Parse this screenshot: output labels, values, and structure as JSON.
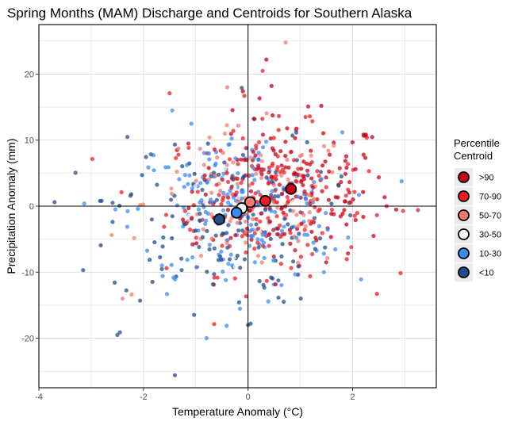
{
  "chart_data": {
    "type": "scatter",
    "title": "Spring Months (MAM) Discharge and Centroids for Southern Alaska",
    "xlabel": "Temperature Anomaly (°C)",
    "ylabel": "Precipitation Anomaly (mm)",
    "xlim": [
      -4,
      3.6
    ],
    "ylim": [
      -27.5,
      27.5
    ],
    "x_ticks": [
      -4,
      -2,
      0,
      2
    ],
    "y_ticks": [
      -20,
      -10,
      0,
      10,
      20
    ],
    "x_tick_labels": [
      "-4",
      "-2",
      "0",
      "2"
    ],
    "y_tick_labels": [
      "-20",
      "-10",
      "0",
      "10",
      "20"
    ],
    "grid": true,
    "reference_lines": {
      "x": 0,
      "y": 0
    },
    "legend": {
      "title_lines": [
        "Percentile",
        "Centroid"
      ],
      "position": "right",
      "entries": [
        {
          "label": ">90",
          "color": "#C8001A",
          "edge": "#000000"
        },
        {
          "label": "70-90",
          "color": "#EE1C25",
          "edge": "#000000"
        },
        {
          "label": "50-70",
          "color": "#F47A6E",
          "edge": "#000000"
        },
        {
          "label": "30-50",
          "color": "#F7FBFF",
          "edge": "#000000"
        },
        {
          "label": "10-30",
          "color": "#3A8CF5",
          "edge": "#000000"
        },
        {
          "label": "<10",
          "color": "#1F4E8C",
          "edge": "#000000"
        }
      ]
    },
    "centroids": [
      {
        "label": ">90",
        "x": 0.82,
        "y": 2.6
      },
      {
        "label": "70-90",
        "x": 0.33,
        "y": 0.8
      },
      {
        "label": "50-70",
        "x": 0.04,
        "y": 0.6
      },
      {
        "label": "30-50",
        "x": -0.12,
        "y": -0.3
      },
      {
        "label": "10-30",
        "x": -0.22,
        "y": -1.0
      },
      {
        "label": "<10",
        "x": -0.55,
        "y": -2.0
      }
    ],
    "series": [
      {
        "label": ">90",
        "x_mean": 0.82,
        "y_mean": 2.6,
        "x_sd": 0.95,
        "y_sd": 5.5,
        "count": 170
      },
      {
        "label": "70-90",
        "x_mean": 0.33,
        "y_mean": 0.8,
        "x_sd": 0.95,
        "y_sd": 5.5,
        "count": 170
      },
      {
        "label": "50-70",
        "x_mean": 0.04,
        "y_mean": 0.6,
        "x_sd": 1.0,
        "y_sd": 5.5,
        "count": 110
      },
      {
        "label": "30-50",
        "x_mean": -0.12,
        "y_mean": -0.3,
        "x_sd": 1.0,
        "y_sd": 6.0,
        "count": 50
      },
      {
        "label": "10-30",
        "x_mean": -0.22,
        "y_mean": -1.0,
        "x_sd": 1.0,
        "y_sd": 6.0,
        "count": 190
      },
      {
        "label": "<10",
        "x_mean": -0.55,
        "y_mean": -2.0,
        "x_sd": 1.05,
        "y_sd": 6.5,
        "count": 150
      }
    ],
    "notable_points": [
      {
        "label": "50-70",
        "x": 0.72,
        "y": 24.8
      },
      {
        "label": ">90",
        "x": 0.35,
        "y": 22.2
      },
      {
        "label": "70-90",
        "x": 0.28,
        "y": 20.5
      },
      {
        "label": ">90",
        "x": 0.45,
        "y": 18.2
      },
      {
        "label": "70-90",
        "x": -1.5,
        "y": 17.1
      },
      {
        "label": ">90",
        "x": -0.1,
        "y": 17.4
      },
      {
        "label": "<10",
        "x": -0.12,
        "y": 17.9
      },
      {
        "label": "70-90",
        "x": -0.07,
        "y": 16.7
      },
      {
        "label": "10-30",
        "x": -1.45,
        "y": 14.5
      },
      {
        "label": ">90",
        "x": 1.15,
        "y": 15.1
      },
      {
        "label": ">90",
        "x": 1.4,
        "y": 15.2
      },
      {
        "label": "<10",
        "x": 0.85,
        "y": 10.7
      },
      {
        "label": "<10",
        "x": -3.7,
        "y": 0.6
      },
      {
        "label": "<10",
        "x": -2.8,
        "y": 0.8
      },
      {
        "label": "50-70",
        "x": -2.4,
        "y": -14.0
      },
      {
        "label": "<10",
        "x": -2.45,
        "y": -19.1
      },
      {
        "label": "<10",
        "x": -2.5,
        "y": -19.5
      },
      {
        "label": "<10",
        "x": -1.4,
        "y": -25.6
      },
      {
        "label": "<10",
        "x": 0.05,
        "y": -17.8
      },
      {
        "label": "<10",
        "x": 0.0,
        "y": -18.0
      },
      {
        "label": "10-30",
        "x": 1.45,
        "y": -10.0
      },
      {
        "label": "70-90",
        "x": 2.65,
        "y": 0.0
      },
      {
        "label": "70-90",
        "x": 3.25,
        "y": -0.6
      },
      {
        "label": ">90",
        "x": 2.4,
        "y": -4.5
      }
    ]
  }
}
